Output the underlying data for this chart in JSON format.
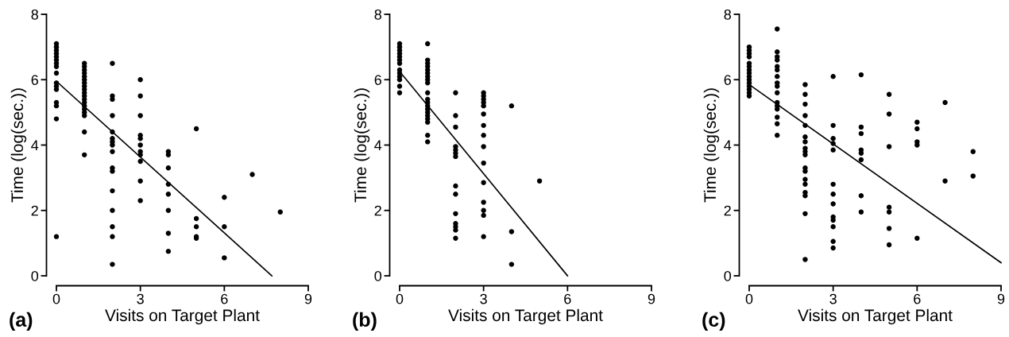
{
  "chart_data": [
    {
      "type": "scatter",
      "xlabel": "Visits on Target Plant",
      "ylabel": "Time (log(sec.))",
      "annotations": [
        "(a)"
      ],
      "xlim": [
        0,
        9
      ],
      "ylim": [
        0,
        8
      ],
      "xticks": [
        0,
        3,
        6,
        9
      ],
      "yticks": [
        0,
        2,
        4,
        6,
        8
      ],
      "grid": false,
      "legend": false,
      "marker": "circle",
      "series": [
        {
          "color": "#000000",
          "x": [
            0,
            0,
            0,
            0,
            0,
            0,
            0,
            0,
            0,
            0,
            0,
            0,
            0,
            0,
            0,
            0,
            1,
            1,
            1,
            1,
            1,
            1,
            1,
            1,
            1,
            1,
            1,
            1,
            1,
            1,
            1,
            1,
            1,
            1,
            1,
            2,
            2,
            2,
            2,
            2,
            2,
            2,
            2,
            2,
            2,
            2,
            2,
            2,
            2,
            2,
            2,
            3,
            3,
            3,
            3,
            3,
            3,
            3,
            3,
            3,
            3,
            3,
            4,
            4,
            4,
            4,
            4,
            4,
            4,
            4,
            5,
            5,
            5,
            5,
            5,
            6,
            6,
            6,
            7,
            8
          ],
          "values": [
            7.1,
            7.0,
            6.9,
            6.8,
            6.7,
            6.6,
            6.5,
            6.4,
            6.2,
            5.9,
            5.8,
            5.7,
            5.3,
            5.2,
            4.8,
            1.2,
            6.5,
            6.4,
            6.3,
            6.2,
            6.1,
            6.0,
            5.9,
            5.8,
            5.7,
            5.6,
            5.5,
            5.4,
            5.3,
            5.2,
            5.1,
            5.0,
            4.9,
            4.4,
            3.7,
            6.5,
            5.5,
            5.4,
            4.9,
            4.4,
            4.2,
            4.1,
            4.0,
            3.8,
            3.3,
            3.2,
            2.6,
            2.0,
            1.5,
            1.2,
            0.35,
            6.0,
            5.5,
            4.9,
            4.3,
            4.2,
            4.0,
            3.8,
            3.7,
            3.5,
            2.9,
            2.3,
            3.8,
            3.7,
            3.3,
            2.8,
            2.5,
            2.0,
            1.3,
            0.75,
            4.5,
            1.75,
            1.5,
            1.2,
            1.15,
            2.4,
            1.5,
            0.55,
            3.1,
            1.95
          ]
        },
        {
          "type": "line",
          "color": "#000000",
          "marker": "none",
          "x": [
            0,
            7.7
          ],
          "values": [
            5.95,
            0
          ]
        }
      ]
    },
    {
      "type": "scatter",
      "xlabel": "Visits on Target Plant",
      "ylabel": "Time (log(sec.))",
      "annotations": [
        "(b)"
      ],
      "xlim": [
        0,
        9
      ],
      "ylim": [
        0,
        8
      ],
      "xticks": [
        0,
        3,
        6,
        9
      ],
      "yticks": [
        0,
        2,
        4,
        6,
        8
      ],
      "grid": false,
      "legend": false,
      "marker": "circle",
      "series": [
        {
          "color": "#000000",
          "x": [
            0,
            0,
            0,
            0,
            0,
            0,
            0,
            0,
            0,
            0,
            0,
            0,
            0,
            1,
            1,
            1,
            1,
            1,
            1,
            1,
            1,
            1,
            1,
            1,
            1,
            1,
            1,
            1,
            1,
            1,
            1,
            1,
            1,
            2,
            2,
            2,
            2,
            2,
            2,
            2,
            2,
            2,
            2,
            2,
            2,
            2,
            2,
            3,
            3,
            3,
            3,
            3,
            3,
            3,
            3,
            3,
            3,
            3,
            3,
            3,
            3,
            3,
            4,
            4,
            4,
            5
          ],
          "values": [
            7.1,
            7.0,
            6.9,
            6.8,
            6.7,
            6.6,
            6.5,
            6.3,
            6.2,
            6.1,
            6.0,
            5.8,
            5.6,
            7.1,
            6.6,
            6.5,
            6.4,
            6.3,
            6.2,
            6.1,
            6.0,
            5.9,
            5.6,
            5.4,
            5.3,
            5.2,
            5.1,
            5.0,
            4.9,
            4.8,
            4.7,
            4.3,
            4.1,
            5.6,
            4.9,
            4.55,
            3.95,
            3.85,
            3.75,
            3.65,
            2.75,
            2.5,
            1.9,
            1.6,
            1.5,
            1.4,
            1.15,
            5.6,
            5.5,
            5.4,
            5.3,
            5.2,
            4.95,
            4.6,
            4.3,
            3.95,
            3.45,
            2.85,
            2.25,
            2.0,
            1.85,
            1.2,
            5.2,
            1.35,
            0.35,
            2.9
          ]
        },
        {
          "type": "line",
          "color": "#000000",
          "marker": "none",
          "x": [
            0,
            6
          ],
          "values": [
            6.25,
            0
          ]
        }
      ]
    },
    {
      "type": "scatter",
      "xlabel": "Visits on Target Plant",
      "ylabel": "Time (log(sec.))",
      "annotations": [
        "(c)"
      ],
      "xlim": [
        0,
        9
      ],
      "ylim": [
        0,
        8
      ],
      "xticks": [
        0,
        3,
        6,
        9
      ],
      "yticks": [
        0,
        2,
        4,
        6,
        8
      ],
      "grid": false,
      "legend": false,
      "marker": "circle",
      "series": [
        {
          "color": "#000000",
          "x": [
            0,
            0,
            0,
            0,
            0,
            0,
            0,
            0,
            0,
            0,
            0,
            0,
            0,
            0,
            0,
            1,
            1,
            1,
            1,
            1,
            1,
            1,
            1,
            1,
            1,
            1,
            1,
            1,
            1,
            1,
            1,
            2,
            2,
            2,
            2,
            2,
            2,
            2,
            2,
            2,
            2,
            2,
            2,
            2,
            2,
            2,
            2,
            2,
            2,
            3,
            3,
            3,
            3,
            3,
            3,
            3,
            3,
            3,
            3,
            3,
            3,
            3,
            4,
            4,
            4,
            4,
            4,
            4,
            4,
            4,
            5,
            5,
            5,
            5,
            5,
            5,
            5,
            6,
            6,
            6,
            6,
            6,
            7,
            7,
            8,
            8
          ],
          "values": [
            7.0,
            6.9,
            6.8,
            6.7,
            6.5,
            6.4,
            6.3,
            6.2,
            6.1,
            6.0,
            5.9,
            5.8,
            5.7,
            5.6,
            5.5,
            7.55,
            6.85,
            6.7,
            6.6,
            6.4,
            6.3,
            6.1,
            5.9,
            5.8,
            5.6,
            5.3,
            5.2,
            5.1,
            4.85,
            4.65,
            4.3,
            5.85,
            5.55,
            5.25,
            4.9,
            4.6,
            4.25,
            4.1,
            3.9,
            3.8,
            3.7,
            3.3,
            3.2,
            2.95,
            2.8,
            2.55,
            2.45,
            1.9,
            0.5,
            6.1,
            4.6,
            4.2,
            4.05,
            3.85,
            2.8,
            2.5,
            2.2,
            1.8,
            1.7,
            1.5,
            1.05,
            0.85,
            6.15,
            4.55,
            4.35,
            3.85,
            3.75,
            3.55,
            2.45,
            1.95,
            5.55,
            4.95,
            3.95,
            2.1,
            1.95,
            1.45,
            0.95,
            4.7,
            4.5,
            4.1,
            4.0,
            1.15,
            5.3,
            2.9,
            3.8,
            3.05
          ]
        },
        {
          "type": "line",
          "color": "#000000",
          "marker": "none",
          "x": [
            0,
            9
          ],
          "values": [
            5.85,
            0.4
          ]
        }
      ]
    }
  ]
}
